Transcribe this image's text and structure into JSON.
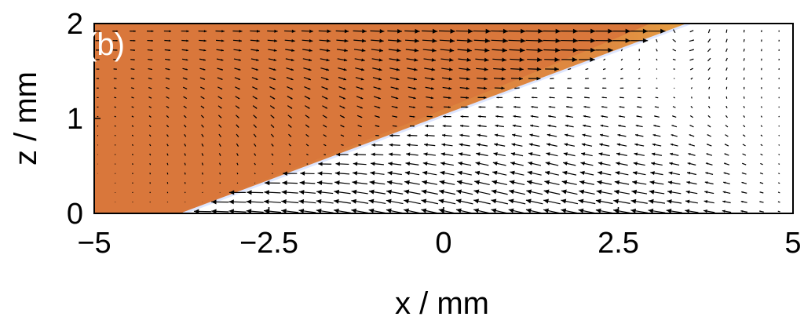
{
  "chart_data": {
    "type": "vector-field",
    "panel_label": "(b)",
    "xlabel": "x / mm",
    "ylabel": "z / mm",
    "xlim": [
      -5,
      5
    ],
    "ylim": [
      0,
      2
    ],
    "x_ticks": [
      {
        "value": -5,
        "label": "−5"
      },
      {
        "value": -2.5,
        "label": "−2.5"
      },
      {
        "value": 0,
        "label": "0"
      },
      {
        "value": 2.5,
        "label": "2.5"
      },
      {
        "value": 5,
        "label": "5"
      }
    ],
    "y_ticks": [
      {
        "value": 0,
        "label": "0"
      },
      {
        "value": 1,
        "label": "1"
      },
      {
        "value": 2,
        "label": "2"
      }
    ],
    "fill_region": {
      "color": "#d9773b",
      "interface_color": "#f2c14a",
      "boundary": [
        [
          -3.75,
          0
        ],
        [
          3.5,
          2
        ]
      ]
    },
    "vector_field": {
      "x_spacing": 0.25,
      "z_spacing": 0.1,
      "color": "#000000",
      "description_note": null
    }
  }
}
